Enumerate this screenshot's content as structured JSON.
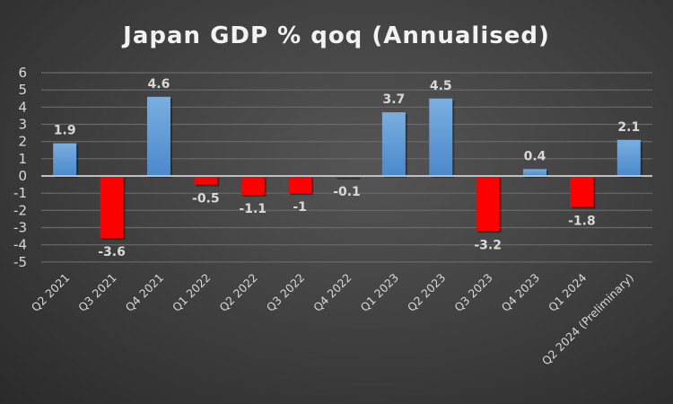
{
  "chart_data": {
    "type": "bar",
    "title": "Japan GDP % qoq (Annualised)",
    "xlabel": "",
    "ylabel": "",
    "ylim": [
      -5,
      6
    ],
    "yticks": [
      6,
      5,
      4,
      3,
      2,
      1,
      0,
      -1,
      -2,
      -3,
      -4,
      -5
    ],
    "grid": true,
    "categories": [
      "Q2 2021",
      "Q3 2021",
      "Q4 2021",
      "Q1 2022",
      "Q2 2022",
      "Q3 2022",
      "Q4 2022",
      "Q1 2023",
      "Q2 2023",
      "Q3 2023",
      "Q4 2023",
      "Q1 2024",
      "Q2 2024 (Preliminary)"
    ],
    "values": [
      1.9,
      -3.6,
      4.6,
      -0.5,
      -1.1,
      -1,
      -0.1,
      3.7,
      4.5,
      -3.2,
      0.4,
      -1.8,
      2.1
    ],
    "data_labels": [
      "1.9",
      "-3.6",
      "4.6",
      "-0.5",
      "-1.1",
      "-1",
      "-0.1",
      "3.7",
      "4.5",
      "-3.2",
      "0.4",
      "-1.8",
      "2.1"
    ],
    "colors": {
      "positive": "#5b9bd5",
      "positive_top": "#7aaee0",
      "negative": "#ff0000",
      "grid": "#6a6a6a",
      "zero_line": "#bfbfbf"
    }
  }
}
